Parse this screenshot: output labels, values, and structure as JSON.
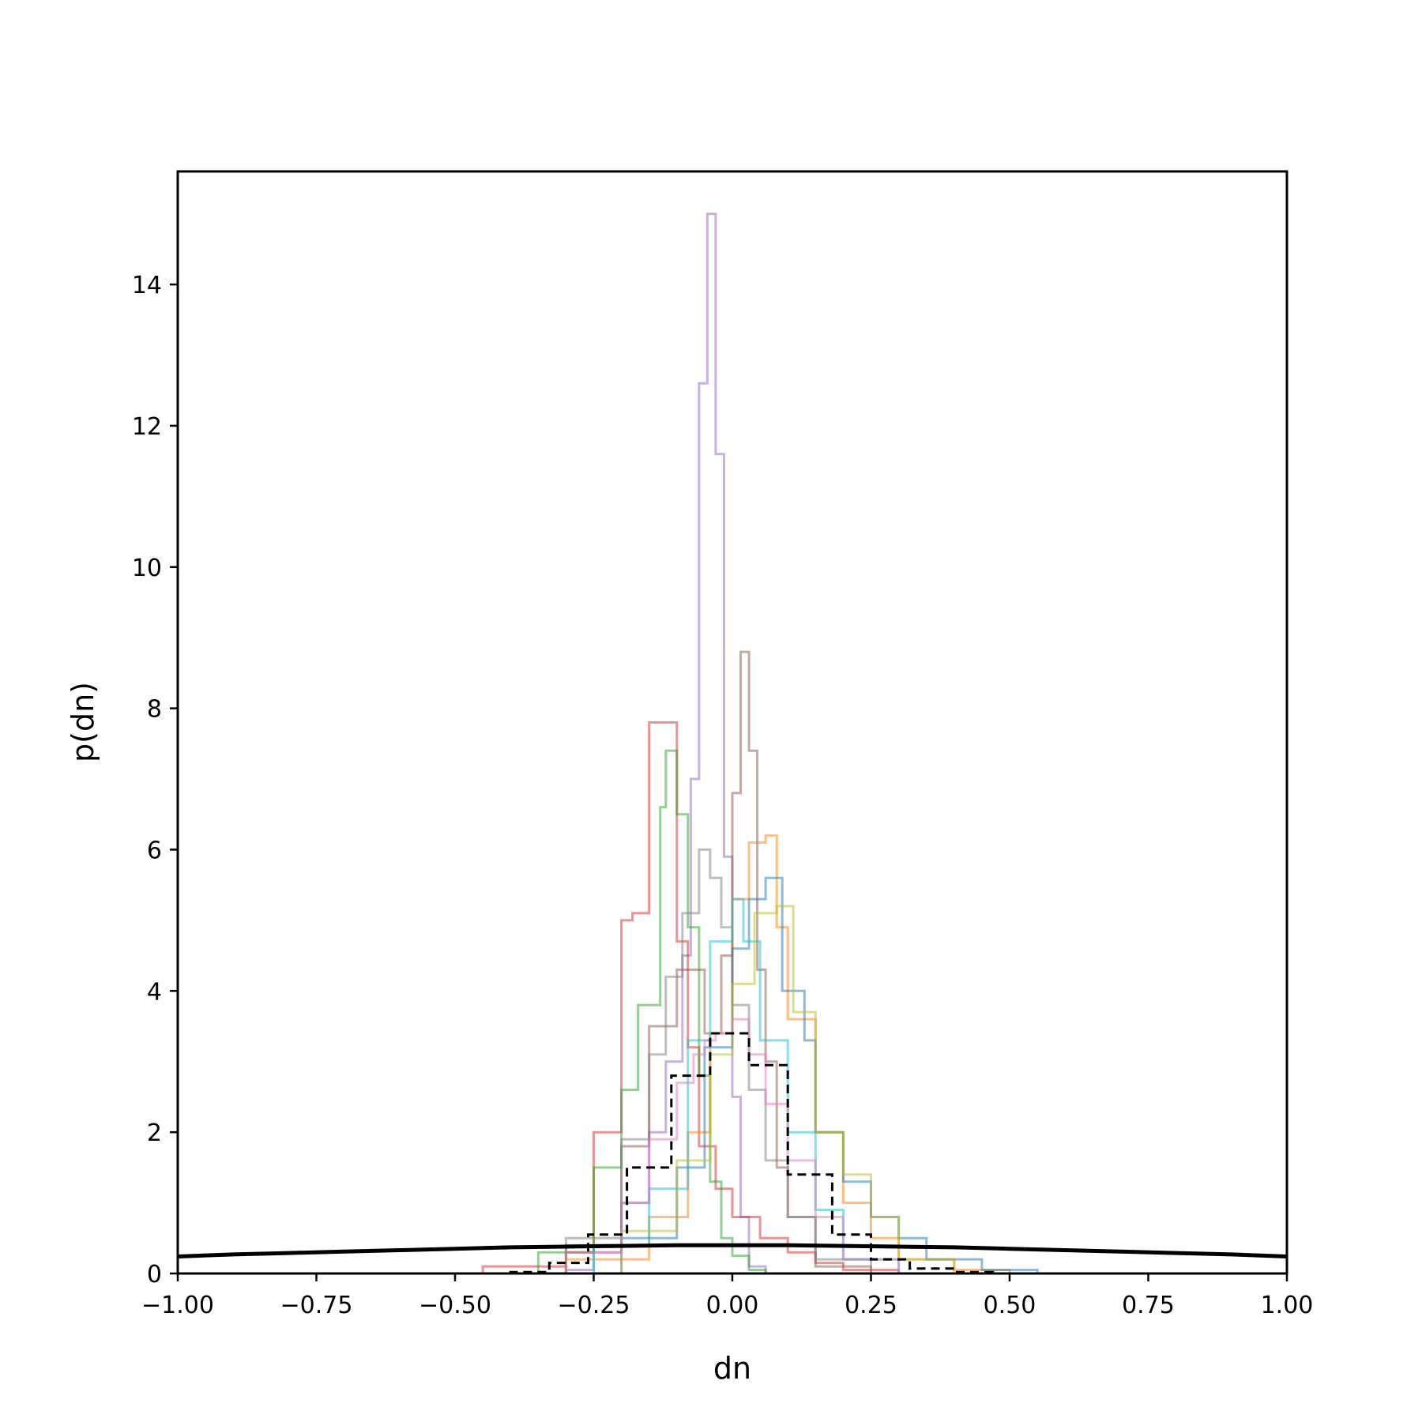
{
  "chart_data": {
    "type": "line",
    "title": "",
    "xlabel": "dn",
    "ylabel": "p(dn)",
    "xlim": [
      -1.0,
      1.0
    ],
    "ylim": [
      0,
      15.6
    ],
    "grid": false,
    "legend": "none",
    "x_ticks": [
      {
        "value": -1.0,
        "label": "−1.00"
      },
      {
        "value": -0.75,
        "label": "−0.75"
      },
      {
        "value": -0.5,
        "label": "−0.50"
      },
      {
        "value": -0.25,
        "label": "−0.25"
      },
      {
        "value": 0.0,
        "label": "0.00"
      },
      {
        "value": 0.25,
        "label": "0.25"
      },
      {
        "value": 0.5,
        "label": "0.50"
      },
      {
        "value": 0.75,
        "label": "0.75"
      },
      {
        "value": 1.0,
        "label": "1.00"
      }
    ],
    "y_ticks": [
      {
        "value": 0,
        "label": "0"
      },
      {
        "value": 2,
        "label": "2"
      },
      {
        "value": 4,
        "label": "4"
      },
      {
        "value": 6,
        "label": "6"
      },
      {
        "value": 8,
        "label": "8"
      },
      {
        "value": 10,
        "label": "10"
      },
      {
        "value": 12,
        "label": "12"
      },
      {
        "value": 14,
        "label": "14"
      }
    ],
    "prior_curve": {
      "style": "solid",
      "color": "#000000",
      "x": [
        -1.0,
        -0.9,
        -0.8,
        -0.7,
        -0.6,
        -0.5,
        -0.4,
        -0.3,
        -0.2,
        -0.1,
        0.0,
        0.1,
        0.2,
        0.3,
        0.4,
        0.5,
        0.6,
        0.7,
        0.8,
        0.9,
        1.0
      ],
      "y": [
        0.24,
        0.27,
        0.29,
        0.31,
        0.33,
        0.35,
        0.37,
        0.38,
        0.39,
        0.4,
        0.4,
        0.4,
        0.39,
        0.38,
        0.37,
        0.35,
        0.33,
        0.31,
        0.29,
        0.27,
        0.24
      ]
    },
    "step_series": [
      {
        "color": "#9467bd",
        "bin_edges": [
          -0.3,
          -0.25,
          -0.2,
          -0.15,
          -0.12,
          -0.09,
          -0.075,
          -0.06,
          -0.045,
          -0.03,
          -0.015,
          0.0,
          0.015,
          0.03,
          0.06,
          0.1
        ],
        "values": [
          0.05,
          0.3,
          1.0,
          2.0,
          3.0,
          4.5,
          7.0,
          12.6,
          15.0,
          11.6,
          5.9,
          2.5,
          0.8,
          0.1,
          0.0
        ]
      },
      {
        "color": "#8c564b",
        "bin_edges": [
          -0.3,
          -0.2,
          -0.15,
          -0.1,
          -0.05,
          -0.02,
          0.0,
          0.015,
          0.03,
          0.045,
          0.06,
          0.08,
          0.1,
          0.15,
          0.25
        ],
        "values": [
          0.4,
          1.8,
          3.5,
          4.3,
          3.4,
          4.5,
          6.8,
          8.8,
          7.4,
          4.3,
          3.0,
          1.5,
          0.8,
          0.1
        ]
      },
      {
        "color": "#d62728",
        "bin_edges": [
          -0.45,
          -0.3,
          -0.25,
          -0.2,
          -0.18,
          -0.15,
          -0.1,
          -0.08,
          -0.06,
          -0.03,
          0.0,
          0.05,
          0.1,
          0.15,
          0.2,
          0.3
        ],
        "values": [
          0.1,
          0.3,
          2.0,
          5.0,
          5.1,
          7.8,
          4.7,
          3.2,
          1.8,
          1.2,
          0.8,
          0.5,
          0.3,
          0.15,
          0.05
        ]
      },
      {
        "color": "#2ca02c",
        "bin_edges": [
          -0.35,
          -0.25,
          -0.2,
          -0.17,
          -0.13,
          -0.12,
          -0.1,
          -0.08,
          -0.06,
          -0.04,
          -0.02,
          0.0,
          0.03,
          0.06
        ],
        "values": [
          0.3,
          1.5,
          2.6,
          3.8,
          6.6,
          7.4,
          6.5,
          4.9,
          2.8,
          1.3,
          0.5,
          0.25,
          0.05
        ]
      },
      {
        "color": "#7f7f7f",
        "bin_edges": [
          -0.3,
          -0.2,
          -0.15,
          -0.12,
          -0.09,
          -0.06,
          -0.04,
          -0.02,
          0.0,
          0.03,
          0.06,
          0.1,
          0.15,
          0.25
        ],
        "values": [
          0.5,
          1.9,
          3.1,
          4.2,
          5.1,
          6.0,
          5.6,
          4.9,
          3.8,
          2.6,
          1.6,
          0.8,
          0.2
        ]
      },
      {
        "color": "#ff7f0e",
        "bin_edges": [
          -0.3,
          -0.15,
          -0.08,
          -0.04,
          0.0,
          0.03,
          0.06,
          0.08,
          0.1,
          0.15,
          0.2,
          0.25,
          0.3,
          0.4,
          0.5
        ],
        "values": [
          0.2,
          0.8,
          2.0,
          3.4,
          5.3,
          6.1,
          6.2,
          4.9,
          3.6,
          2.0,
          1.0,
          0.5,
          0.2,
          0.05
        ]
      },
      {
        "color": "#1f77b4",
        "bin_edges": [
          -0.2,
          -0.1,
          -0.05,
          0.0,
          0.03,
          0.06,
          0.09,
          0.13,
          0.15,
          0.2,
          0.25,
          0.3,
          0.35,
          0.45,
          0.55
        ],
        "values": [
          0.5,
          1.5,
          3.2,
          4.6,
          5.3,
          5.6,
          4.0,
          3.3,
          2.0,
          1.3,
          0.8,
          0.5,
          0.2,
          0.05
        ]
      },
      {
        "color": "#17becf",
        "bin_edges": [
          -0.25,
          -0.15,
          -0.08,
          -0.04,
          0.0,
          0.02,
          0.05,
          0.1,
          0.15,
          0.2,
          0.3
        ],
        "values": [
          0.4,
          1.2,
          3.3,
          4.7,
          5.3,
          4.7,
          3.3,
          2.0,
          0.9,
          0.2
        ]
      },
      {
        "color": "#bcbd22",
        "bin_edges": [
          -0.2,
          -0.1,
          -0.04,
          0.0,
          0.04,
          0.08,
          0.11,
          0.15,
          0.2,
          0.25,
          0.3,
          0.4
        ],
        "values": [
          0.6,
          1.6,
          3.1,
          4.1,
          5.1,
          5.2,
          3.7,
          2.0,
          1.4,
          0.8,
          0.2
        ]
      },
      {
        "color": "#e377c2",
        "bin_edges": [
          -0.3,
          -0.2,
          -0.15,
          -0.1,
          -0.07,
          -0.05,
          -0.03,
          0.0,
          0.03,
          0.06,
          0.1,
          0.15,
          0.2,
          0.3
        ],
        "values": [
          0.3,
          1.0,
          1.9,
          2.7,
          3.1,
          3.3,
          3.4,
          3.6,
          3.1,
          2.4,
          1.6,
          0.8,
          0.2
        ]
      }
    ],
    "dashed_series": {
      "color": "#000000",
      "style": "dashed",
      "bin_edges": [
        -0.4,
        -0.33,
        -0.26,
        -0.19,
        -0.11,
        -0.04,
        0.03,
        0.1,
        0.18,
        0.25,
        0.32,
        0.4,
        0.47
      ],
      "values": [
        0.02,
        0.15,
        0.55,
        1.5,
        2.8,
        3.4,
        2.95,
        1.4,
        0.55,
        0.2,
        0.07,
        0.02
      ]
    }
  }
}
